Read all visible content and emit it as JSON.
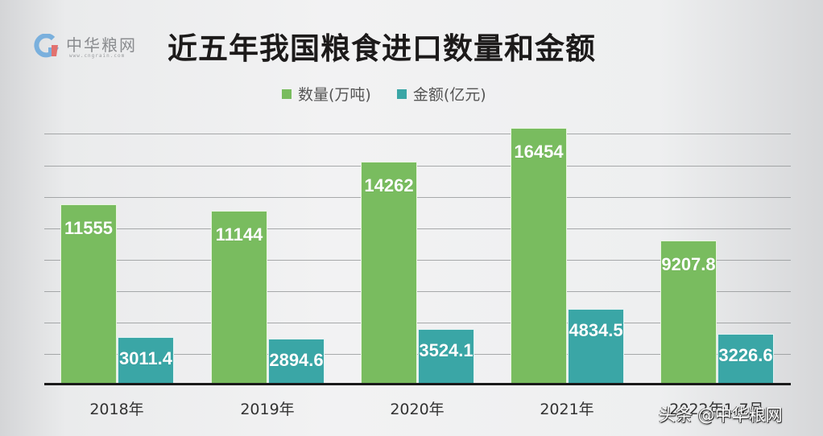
{
  "header": {
    "logo_brand": "中华粮网",
    "logo_url": "www.cngrain.com",
    "title": "近五年我国粮食进口数量和金额"
  },
  "legend": [
    {
      "label": "数量(万吨)",
      "color": "#79bc5f"
    },
    {
      "label": "金额(亿元)",
      "color": "#3aa6a6"
    }
  ],
  "watermark": "头条 @中华粮网",
  "chart_data": {
    "type": "bar",
    "title": "近五年我国粮食进口数量和金额",
    "categories": [
      "2018年",
      "2019年",
      "2020年",
      "2021年",
      "2022年1-7月"
    ],
    "series": [
      {
        "name": "数量(万吨)",
        "color": "#79bc5f",
        "values": [
          11555,
          11144,
          14262,
          16454,
          9207.8
        ],
        "labels": [
          "11555",
          "11144",
          "14262",
          "16454",
          "9207.8"
        ]
      },
      {
        "name": "金额(亿元)",
        "color": "#3aa6a6",
        "values": [
          3011.4,
          2894.6,
          3524.1,
          4834.5,
          3226.6
        ],
        "labels": [
          "3011.4",
          "2894.6",
          "3524.1",
          "4834.5",
          "3226.6"
        ]
      }
    ],
    "xlabel": "",
    "ylabel": "",
    "ylim": [
      0,
      16000
    ],
    "y_axis_visible": false,
    "grid": true,
    "legend_position": "top",
    "data_labels": true
  }
}
